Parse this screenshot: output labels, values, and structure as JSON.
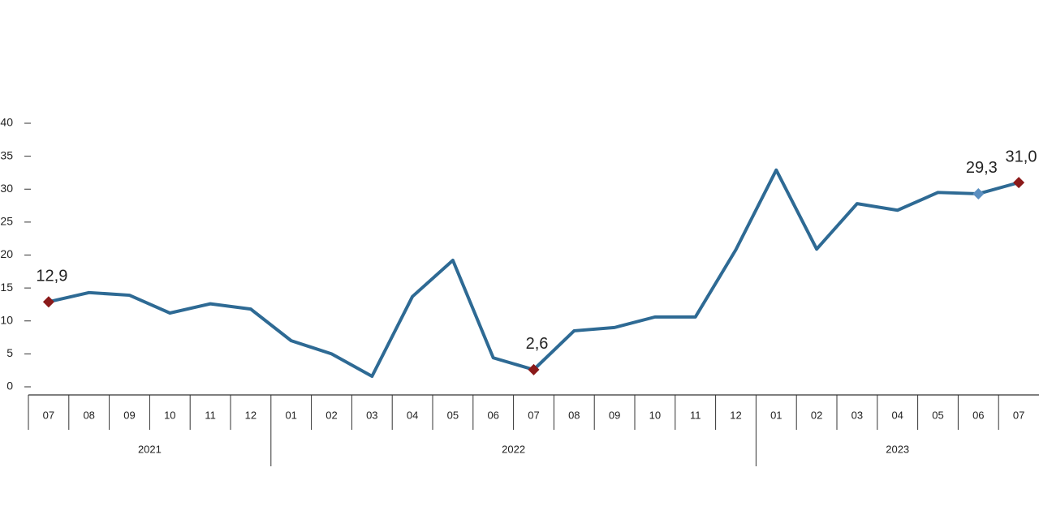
{
  "chart_data": {
    "type": "line",
    "categories": [
      "07",
      "08",
      "09",
      "10",
      "11",
      "12",
      "01",
      "02",
      "03",
      "04",
      "05",
      "06",
      "07",
      "08",
      "09",
      "10",
      "11",
      "12",
      "01",
      "02",
      "03",
      "04",
      "05",
      "06",
      "07"
    ],
    "groups": [
      {
        "label": "2021",
        "count": 6
      },
      {
        "label": "2022",
        "count": 12
      },
      {
        "label": "2023",
        "count": 7
      }
    ],
    "series": [
      {
        "color": "#2e6a94",
        "values": [
          12.9,
          14.3,
          13.9,
          11.2,
          12.6,
          11.8,
          7.0,
          5.0,
          1.6,
          13.7,
          19.2,
          4.4,
          2.6,
          8.5,
          9.0,
          10.6,
          10.6,
          20.8,
          32.9,
          20.9,
          27.8,
          26.8,
          29.5,
          29.3,
          31.0
        ],
        "value_labels": [
          "12,9",
          null,
          null,
          null,
          null,
          null,
          null,
          null,
          null,
          null,
          null,
          null,
          "2,6",
          null,
          null,
          null,
          null,
          null,
          null,
          null,
          null,
          null,
          null,
          "29,3",
          "31,0"
        ],
        "marker_colors": [
          "#8b1a1a",
          null,
          null,
          null,
          null,
          null,
          null,
          null,
          null,
          null,
          null,
          null,
          "#8b1a1a",
          null,
          null,
          null,
          null,
          null,
          null,
          null,
          null,
          null,
          null,
          "#5b8fc0",
          "#8b1a1a"
        ]
      }
    ],
    "ylim": [
      0,
      40
    ],
    "yticks": [
      0,
      5,
      10,
      15,
      20,
      25,
      30,
      35,
      40
    ],
    "grid": false
  }
}
